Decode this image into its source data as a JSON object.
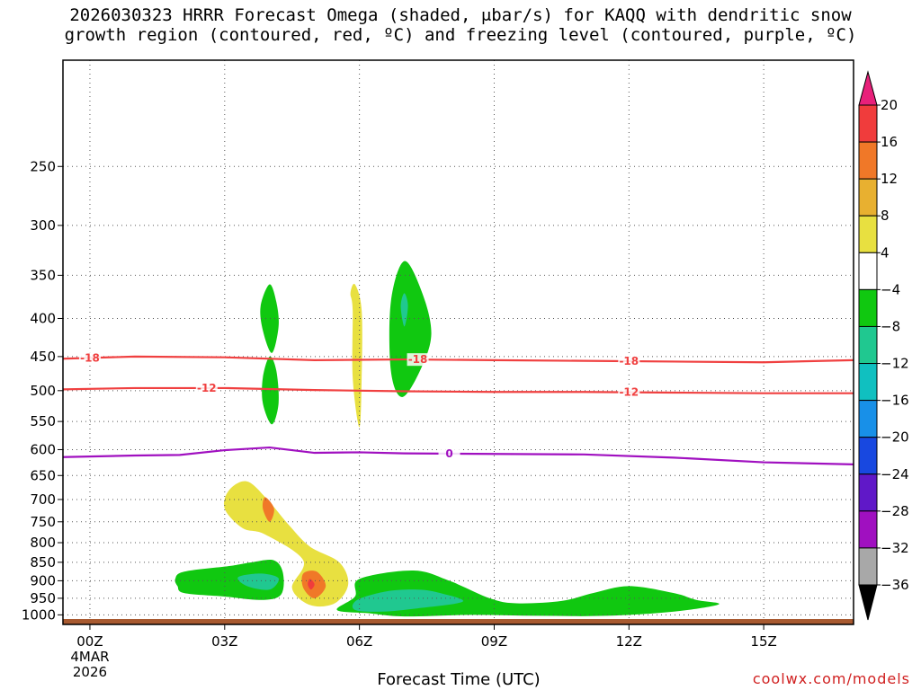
{
  "chart_data": {
    "type": "contour",
    "title": "2026030323 HRRR Forecast Omega (shaded, μbar/s) for KAQQ with dendritic snow\ngrowth region (contoured, red, ºC) and freezing level (contoured, purple, ºC)",
    "xlabel": "Forecast Time (UTC)",
    "credit": "coolwx.com/models",
    "x_ticks": [
      {
        "hour": 0,
        "label": "00Z"
      },
      {
        "hour": 3,
        "label": "03Z"
      },
      {
        "hour": 6,
        "label": "06Z"
      },
      {
        "hour": 9,
        "label": "09Z"
      },
      {
        "hour": 12,
        "label": "12Z"
      },
      {
        "hour": 15,
        "label": "15Z"
      }
    ],
    "date_label_line1": "4MAR",
    "date_label_line2": "2026",
    "xlim": [
      -0.6,
      17
    ],
    "y_ticks": [
      250,
      300,
      350,
      400,
      450,
      500,
      550,
      600,
      650,
      700,
      750,
      800,
      850,
      900,
      950,
      1000
    ],
    "y_tick_labels": [
      "250",
      "300",
      "350",
      "400",
      "450",
      "500",
      "550",
      "600",
      "650",
      "700",
      "750",
      "800",
      "850",
      "900",
      "950",
      "1000"
    ],
    "ylim_hPa": [
      180,
      1030
    ],
    "grid": true,
    "colorbar": {
      "labels": [
        "20",
        "16",
        "12",
        "8",
        "4",
        "-4",
        "-8",
        "-12",
        "-16",
        "-20",
        "-24",
        "-28",
        "-32",
        "-36"
      ],
      "colors": [
        "#e8207a",
        "#f03c3c",
        "#f07828",
        "#e8b030",
        "#e8e040",
        "#ffffff",
        "#10c810",
        "#20c890",
        "#10c0c0",
        "#1890e8",
        "#1848e0",
        "#6018c8",
        "#a010c0",
        "#a8a8a8",
        "#000000"
      ]
    },
    "contours": [
      {
        "name": "dendritic -18",
        "color": "#f04040",
        "label": "-18",
        "x": [
          -0.6,
          1,
          3,
          5,
          7,
          9,
          11,
          13,
          15,
          17
        ],
        "y": [
          453,
          450,
          451,
          455,
          454,
          455,
          456,
          457,
          458,
          455
        ]
      },
      {
        "name": "dendritic -12",
        "color": "#f04040",
        "label": "-12",
        "x": [
          -0.6,
          1,
          3,
          5,
          7,
          9,
          11,
          13,
          15,
          17
        ],
        "y": [
          498,
          496,
          496,
          499,
          501,
          502,
          502,
          503,
          504,
          504
        ]
      },
      {
        "name": "freezing level 0",
        "color": "#a010c0",
        "label": "0",
        "x": [
          -0.6,
          1,
          2,
          3,
          4,
          5,
          6,
          7,
          9,
          11,
          13,
          15,
          17
        ],
        "y": [
          614,
          611,
          610,
          601,
          596,
          606,
          605,
          607,
          608,
          609,
          615,
          624,
          628
        ]
      }
    ],
    "omega_regions": [
      {
        "color": "#10c810",
        "value_range": "-4 to -8",
        "points": [
          [
            4.0,
            360
          ],
          [
            4.15,
            380
          ],
          [
            4.2,
            410
          ],
          [
            4.05,
            445
          ],
          [
            3.85,
            415
          ],
          [
            3.8,
            385
          ]
        ]
      },
      {
        "color": "#10c810",
        "value_range": "-4 to -8",
        "points": [
          [
            4.0,
            450
          ],
          [
            4.15,
            470
          ],
          [
            4.2,
            520
          ],
          [
            4.05,
            555
          ],
          [
            3.85,
            520
          ],
          [
            3.85,
            480
          ]
        ]
      },
      {
        "color": "#e8e040",
        "value_range": "4 to 8",
        "points": [
          [
            5.9,
            360
          ],
          [
            6.05,
            390
          ],
          [
            6.05,
            480
          ],
          [
            6.0,
            560
          ],
          [
            5.85,
            480
          ],
          [
            5.85,
            390
          ],
          [
            5.8,
            370
          ]
        ]
      },
      {
        "color": "#10c810",
        "value_range": "-4 to -8",
        "points": [
          [
            7.0,
            335
          ],
          [
            7.4,
            370
          ],
          [
            7.6,
            420
          ],
          [
            7.35,
            470
          ],
          [
            6.95,
            510
          ],
          [
            6.7,
            470
          ],
          [
            6.7,
            380
          ]
        ]
      },
      {
        "color": "#20c890",
        "value_range": "-8 to -12",
        "points": [
          [
            7.0,
            370
          ],
          [
            7.08,
            385
          ],
          [
            7.0,
            410
          ],
          [
            6.92,
            385
          ]
        ]
      },
      {
        "color": "#e8e040",
        "value_range": "4 to 8",
        "points": [
          [
            3.1,
            680
          ],
          [
            3.5,
            662
          ],
          [
            3.95,
            700
          ],
          [
            4.45,
            760
          ],
          [
            4.9,
            810
          ],
          [
            5.55,
            850
          ],
          [
            5.75,
            910
          ],
          [
            5.45,
            965
          ],
          [
            4.9,
            970
          ],
          [
            4.5,
            920
          ],
          [
            4.75,
            845
          ],
          [
            3.9,
            780
          ],
          [
            3.4,
            765
          ],
          [
            3.0,
            720
          ]
        ]
      },
      {
        "color": "#f07828",
        "value_range": "12 to 16",
        "points": [
          [
            3.9,
            695
          ],
          [
            4.1,
            720
          ],
          [
            4.0,
            750
          ],
          [
            3.85,
            720
          ]
        ]
      },
      {
        "color": "#f07828",
        "value_range": "12 to 16",
        "points": [
          [
            4.75,
            880
          ],
          [
            5.05,
            875
          ],
          [
            5.25,
            915
          ],
          [
            5.0,
            950
          ],
          [
            4.75,
            920
          ]
        ]
      },
      {
        "color": "#f03c3c",
        "value_range": "16 to 20",
        "points": [
          [
            4.9,
            895
          ],
          [
            5.0,
            910
          ],
          [
            4.92,
            925
          ],
          [
            4.85,
            910
          ]
        ]
      },
      {
        "color": "#10c810",
        "value_range": "-4 to -8",
        "points": [
          [
            1.9,
            895
          ],
          [
            2.1,
            875
          ],
          [
            3.1,
            860
          ],
          [
            3.6,
            850
          ],
          [
            4.1,
            845
          ],
          [
            4.3,
            880
          ],
          [
            4.25,
            940
          ],
          [
            3.8,
            955
          ],
          [
            3.0,
            945
          ],
          [
            2.1,
            935
          ],
          [
            1.95,
            915
          ]
        ]
      },
      {
        "color": "#20c890",
        "value_range": "-8 to -12",
        "points": [
          [
            3.3,
            890
          ],
          [
            3.8,
            880
          ],
          [
            4.2,
            893
          ],
          [
            4.0,
            925
          ],
          [
            3.5,
            915
          ]
        ]
      },
      {
        "color": "#10c810",
        "value_range": "-4 to -8",
        "points": [
          [
            6.0,
            895
          ],
          [
            7.2,
            872
          ],
          [
            8.0,
            900
          ],
          [
            8.9,
            950
          ],
          [
            9.5,
            965
          ],
          [
            10.5,
            958
          ],
          [
            11.2,
            935
          ],
          [
            12.0,
            915
          ],
          [
            13.0,
            935
          ],
          [
            13.5,
            955
          ],
          [
            14.0,
            968
          ],
          [
            13.0,
            990
          ],
          [
            11.5,
            1003
          ],
          [
            10.0,
            1003
          ],
          [
            8.5,
            1000
          ],
          [
            7.0,
            1005
          ],
          [
            6.2,
            995
          ],
          [
            5.5,
            985
          ],
          [
            5.9,
            945
          ]
        ]
      },
      {
        "color": "#20c890",
        "value_range": "-8 to -12",
        "points": [
          [
            5.95,
            955
          ],
          [
            6.6,
            930
          ],
          [
            7.3,
            925
          ],
          [
            7.8,
            935
          ],
          [
            8.3,
            960
          ],
          [
            7.3,
            980
          ],
          [
            6.5,
            990
          ],
          [
            5.9,
            985
          ]
        ]
      }
    ],
    "ground": {
      "color": "#a85a30",
      "hPa_top": 1013
    }
  }
}
